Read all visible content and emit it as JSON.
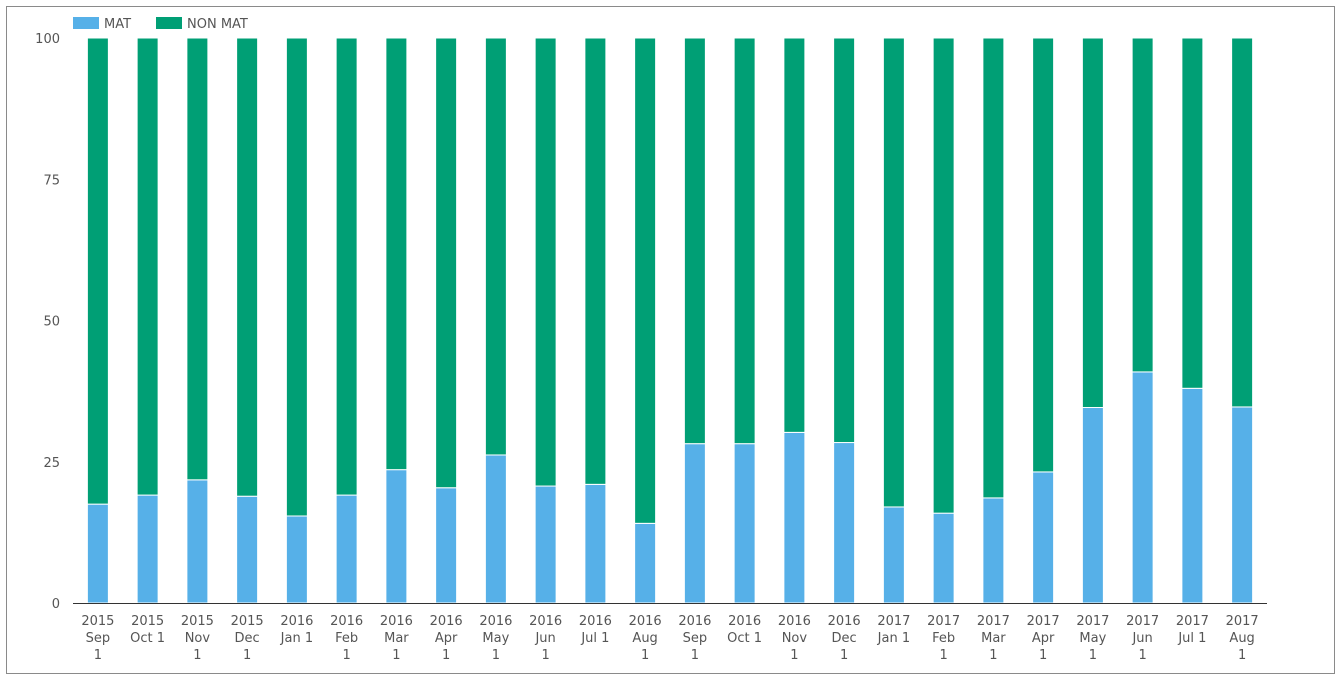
{
  "chart_data": {
    "type": "bar",
    "stacked": true,
    "categories": [
      [
        "2015",
        "Sep",
        "1"
      ],
      [
        "2015",
        "Oct 1"
      ],
      [
        "2015",
        "Nov",
        "1"
      ],
      [
        "2015",
        "Dec",
        "1"
      ],
      [
        "2016",
        "Jan 1"
      ],
      [
        "2016",
        "Feb",
        "1"
      ],
      [
        "2016",
        "Mar",
        "1"
      ],
      [
        "2016",
        "Apr",
        "1"
      ],
      [
        "2016",
        "May",
        "1"
      ],
      [
        "2016",
        "Jun",
        "1"
      ],
      [
        "2016",
        "Jul 1"
      ],
      [
        "2016",
        "Aug",
        "1"
      ],
      [
        "2016",
        "Sep",
        "1"
      ],
      [
        "2016",
        "Oct 1"
      ],
      [
        "2016",
        "Nov",
        "1"
      ],
      [
        "2016",
        "Dec",
        "1"
      ],
      [
        "2017",
        "Jan 1"
      ],
      [
        "2017",
        "Feb",
        "1"
      ],
      [
        "2017",
        "Mar",
        "1"
      ],
      [
        "2017",
        "Apr",
        "1"
      ],
      [
        "2017",
        "May",
        "1"
      ],
      [
        "2017",
        "Jun",
        "1"
      ],
      [
        "2017",
        "Jul 1"
      ],
      [
        "2017",
        "Aug",
        "1"
      ]
    ],
    "series": [
      {
        "name": "MAT",
        "color": "#56b0e8",
        "values": [
          17.5,
          19.1,
          21.8,
          18.9,
          15.4,
          19.1,
          23.6,
          20.4,
          26.2,
          20.7,
          21.0,
          14.1,
          28.2,
          28.2,
          30.2,
          28.4,
          17.0,
          15.9,
          18.6,
          23.2,
          34.6,
          40.9,
          38.0,
          34.7
        ]
      },
      {
        "name": "NON MAT",
        "color": "#009f75",
        "values": [
          82.5,
          80.9,
          78.2,
          81.1,
          84.6,
          80.9,
          76.4,
          79.6,
          73.8,
          79.3,
          79.0,
          85.9,
          71.8,
          71.8,
          69.8,
          71.6,
          83.0,
          84.1,
          81.4,
          76.8,
          65.4,
          59.1,
          62.0,
          65.3
        ]
      }
    ],
    "ylim": [
      0,
      100
    ],
    "yticks": [
      "0",
      "25",
      "50",
      "75",
      "100"
    ],
    "title": "",
    "xlabel": "",
    "ylabel": "",
    "grid": false,
    "legend_position": "top-left"
  }
}
